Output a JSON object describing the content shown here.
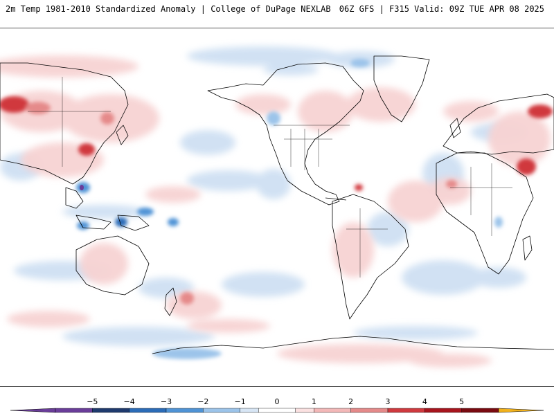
{
  "header": {
    "left": "2m Temp 1981-2010 Standardized Anomaly | College of DuPage NEXLAB",
    "right": "06Z GFS | F315 Valid: 09Z TUE APR 08 2025"
  },
  "colorbar": {
    "min": -6,
    "max": 6,
    "ticks": [
      -5,
      -4,
      -3,
      -2,
      -1,
      0,
      1,
      2,
      3,
      4,
      5
    ],
    "tick_labels": [
      "−5",
      "−4",
      "−3",
      "−2",
      "−1",
      "0",
      "1",
      "2",
      "3",
      "4",
      "5"
    ],
    "bins": [
      {
        "from": -6,
        "to": -5,
        "color": "#6a3d9a"
      },
      {
        "from": -5,
        "to": -4,
        "color": "#1f3a6e"
      },
      {
        "from": -4,
        "to": -3,
        "color": "#2b6cb8"
      },
      {
        "from": -3,
        "to": -2,
        "color": "#4f93d6"
      },
      {
        "from": -2,
        "to": -1,
        "color": "#9cc4ea"
      },
      {
        "from": -1,
        "to": -0.5,
        "color": "#d8e6f5"
      },
      {
        "from": -0.5,
        "to": 0.5,
        "color": "#ffffff"
      },
      {
        "from": 0.5,
        "to": 1,
        "color": "#fbe1e1"
      },
      {
        "from": 1,
        "to": 2,
        "color": "#f3b8b8"
      },
      {
        "from": 2,
        "to": 3,
        "color": "#e58a8a"
      },
      {
        "from": 3,
        "to": 4,
        "color": "#d0393e"
      },
      {
        "from": 4,
        "to": 5,
        "color": "#a8141d"
      },
      {
        "from": 5,
        "to": 6,
        "color": "#7a0a10"
      }
    ],
    "arrow_low_color": "#6a3d9a",
    "arrow_high_color": "#f2b21c"
  },
  "map": {
    "projection": "cylindrical-equidistant",
    "center_longitude": -120,
    "positive_anomaly_color": "#f4cccc",
    "negative_anomaly_color": "#c9dcf1",
    "coastline_color": "#000000"
  }
}
